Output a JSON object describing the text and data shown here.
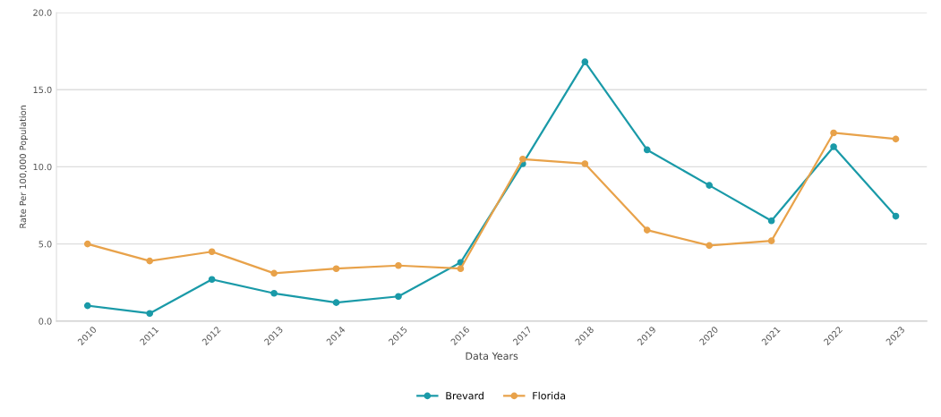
{
  "chart_data": {
    "type": "line",
    "xlabel": "Data Years",
    "ylabel": "Rate Per 100,000 Population",
    "categories": [
      "2010",
      "2011",
      "2012",
      "2013",
      "2014",
      "2015",
      "2016",
      "2017",
      "2018",
      "2019",
      "2020",
      "2021",
      "2022",
      "2023"
    ],
    "series": [
      {
        "name": "Brevard",
        "color": "#1a9aa8",
        "values": [
          1.0,
          0.5,
          2.7,
          1.8,
          1.2,
          1.6,
          3.8,
          10.2,
          16.8,
          11.1,
          8.8,
          6.5,
          11.3,
          6.8
        ]
      },
      {
        "name": "Florida",
        "color": "#e8a24a",
        "values": [
          5.0,
          3.9,
          4.5,
          3.1,
          3.4,
          3.6,
          3.4,
          10.5,
          10.2,
          5.9,
          4.9,
          5.2,
          12.2,
          11.8
        ]
      }
    ],
    "ylim": [
      0,
      20
    ],
    "yticks": [
      {
        "value": 0,
        "label": "0.0"
      },
      {
        "value": 5,
        "label": "5.0"
      },
      {
        "value": 10,
        "label": "10.0"
      },
      {
        "value": 15,
        "label": "15.0"
      },
      {
        "value": 20,
        "label": "20.0"
      }
    ],
    "grid": "y",
    "legend": "bottom",
    "marker": "circle",
    "line_style": "solid"
  }
}
